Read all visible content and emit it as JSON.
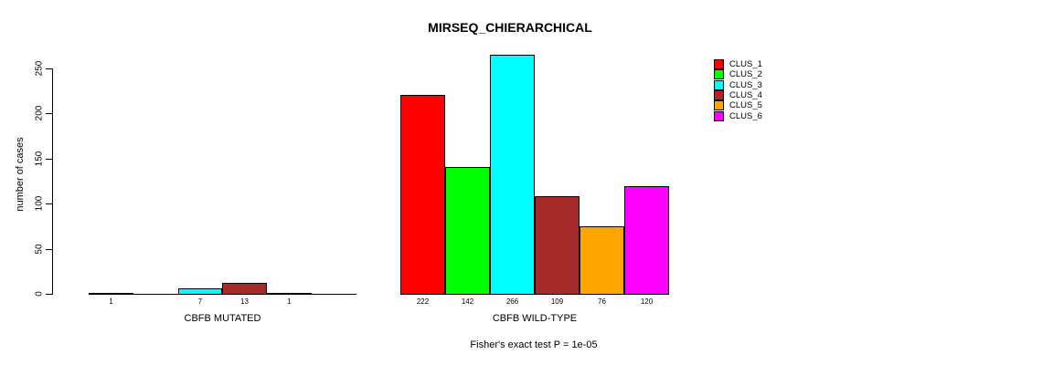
{
  "chart_data": {
    "type": "bar",
    "title": "MIRSEQ_CHIERARCHICAL",
    "ylabel": "number of cases",
    "footnote": "Fisher's exact test P = 1e-05",
    "yticks": [
      0,
      50,
      100,
      150,
      200,
      250
    ],
    "ylim": [
      0,
      270
    ],
    "grid": false,
    "legend_position": "top-right",
    "bar_border_color": "#000000",
    "background_color": "#ffffff",
    "clusters": [
      {
        "name": "CLUS_1",
        "color": "#FF0000"
      },
      {
        "name": "CLUS_2",
        "color": "#00FF00"
      },
      {
        "name": "CLUS_3",
        "color": "#00FFFF"
      },
      {
        "name": "CLUS_4",
        "color": "#A52A2A"
      },
      {
        "name": "CLUS_5",
        "color": "#FFA500"
      },
      {
        "name": "CLUS_6",
        "color": "#FF00FF"
      }
    ],
    "groups": [
      {
        "label": "CBFB MUTATED",
        "values": [
          1,
          0,
          7,
          13,
          1,
          0
        ]
      },
      {
        "label": "CBFB WILD-TYPE",
        "values": [
          222,
          142,
          266,
          109,
          76,
          120
        ]
      }
    ],
    "value_label_rule": "bar values are printed under each bar; zero-value bars have no label"
  }
}
